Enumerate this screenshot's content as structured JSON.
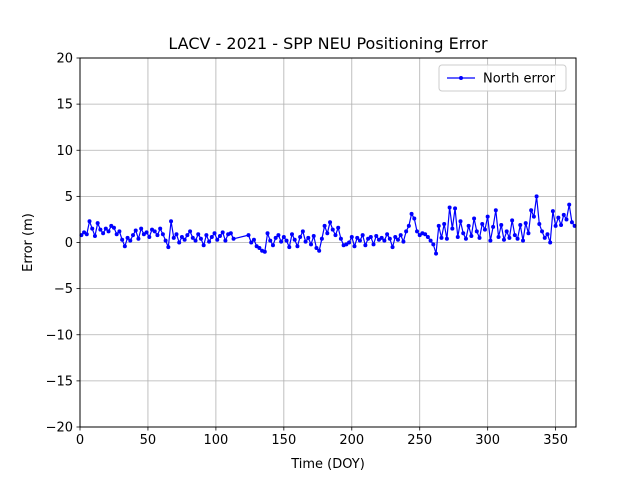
{
  "chart_data": {
    "type": "line",
    "title": "LACV - 2021 - SPP NEU Positioning Error",
    "x_label": "Time (DOY)",
    "y_label": "Error (m)",
    "xlim": [
      0,
      365
    ],
    "ylim": [
      -20,
      20
    ],
    "xticks": [
      0,
      50,
      100,
      150,
      200,
      250,
      300,
      350
    ],
    "yticks": [
      {
        "value": -20,
        "label": "−20"
      },
      {
        "value": -15,
        "label": "−15"
      },
      {
        "value": -10,
        "label": "−10"
      },
      {
        "value": -5,
        "label": "−5"
      },
      0,
      5,
      10,
      15,
      20
    ],
    "grid": true,
    "legend": "upper right",
    "x": [
      1,
      3,
      5,
      7,
      9,
      11,
      13,
      15,
      17,
      19,
      21,
      23,
      25,
      27,
      29,
      31,
      33,
      35,
      37,
      39,
      41,
      43,
      45,
      47,
      49,
      51,
      53,
      55,
      57,
      59,
      61,
      63,
      65,
      67,
      69,
      71,
      73,
      75,
      77,
      79,
      81,
      83,
      85,
      87,
      89,
      91,
      93,
      95,
      97,
      99,
      101,
      103,
      105,
      107,
      109,
      111,
      113,
      124,
      126,
      128,
      130,
      132,
      134,
      136,
      138,
      140,
      142,
      144,
      146,
      148,
      150,
      152,
      154,
      156,
      158,
      160,
      162,
      164,
      166,
      168,
      170,
      172,
      174,
      176,
      178,
      180,
      182,
      184,
      186,
      188,
      190,
      192,
      194,
      196,
      198,
      200,
      202,
      204,
      206,
      208,
      210,
      212,
      214,
      216,
      218,
      220,
      222,
      224,
      226,
      228,
      230,
      232,
      234,
      236,
      238,
      240,
      242,
      244,
      246,
      248,
      250,
      252,
      254,
      256,
      258,
      260,
      262,
      264,
      266,
      268,
      270,
      272,
      274,
      276,
      278,
      280,
      282,
      284,
      286,
      288,
      290,
      292,
      294,
      296,
      298,
      300,
      302,
      304,
      306,
      308,
      310,
      312,
      314,
      316,
      318,
      320,
      322,
      324,
      326,
      328,
      330,
      332,
      334,
      336,
      338,
      340,
      342,
      344,
      346,
      348,
      350,
      352,
      354,
      356,
      358,
      360,
      362,
      364
    ],
    "series": [
      {
        "name": "North error",
        "color": "#0000ff",
        "values": [
          0.8,
          1.1,
          0.9,
          2.3,
          1.5,
          0.7,
          2.1,
          1.4,
          1.0,
          1.5,
          1.2,
          1.8,
          1.6,
          0.9,
          1.2,
          0.3,
          -0.4,
          0.5,
          0.2,
          0.8,
          1.3,
          0.4,
          1.5,
          0.9,
          1.1,
          0.6,
          1.4,
          1.2,
          0.8,
          1.5,
          0.9,
          0.2,
          -0.5,
          2.3,
          0.5,
          0.9,
          0.0,
          0.6,
          0.3,
          0.8,
          1.2,
          0.5,
          0.2,
          0.9,
          0.4,
          -0.3,
          0.8,
          0.1,
          0.6,
          1.0,
          0.3,
          0.7,
          1.1,
          0.2,
          0.9,
          1.0,
          0.4,
          0.8,
          0.0,
          0.3,
          -0.4,
          -0.6,
          -0.9,
          -1.0,
          1.0,
          0.2,
          -0.3,
          0.5,
          0.8,
          0.1,
          0.6,
          0.2,
          -0.5,
          0.9,
          0.3,
          -0.4,
          0.6,
          1.2,
          0.1,
          0.5,
          -0.2,
          0.7,
          -0.6,
          -0.9,
          0.4,
          1.8,
          1.0,
          2.2,
          1.4,
          0.8,
          1.6,
          0.4,
          -0.3,
          -0.2,
          0.0,
          0.6,
          -0.4,
          0.5,
          0.2,
          0.8,
          -0.3,
          0.4,
          0.6,
          -0.2,
          0.7,
          0.3,
          0.5,
          0.2,
          0.9,
          0.4,
          -0.5,
          0.6,
          0.3,
          0.8,
          0.1,
          1.2,
          1.8,
          3.1,
          2.6,
          1.2,
          0.8,
          1.0,
          0.9,
          0.6,
          0.2,
          -0.2,
          -1.2,
          1.8,
          0.5,
          2.0,
          0.4,
          3.8,
          1.5,
          3.7,
          0.6,
          2.3,
          1.0,
          0.4,
          1.8,
          0.7,
          2.6,
          1.2,
          0.5,
          2.0,
          1.4,
          2.8,
          0.2,
          1.7,
          3.5,
          0.6,
          1.9,
          0.3,
          1.2,
          0.5,
          2.4,
          0.8,
          0.4,
          1.9,
          0.2,
          2.1,
          1.0,
          3.5,
          2.8,
          5.0,
          2.0,
          1.2,
          0.5,
          0.9,
          0.0,
          3.4,
          1.8,
          2.7,
          1.9,
          3.0,
          2.5,
          4.1,
          2.2,
          1.8
        ]
      }
    ]
  }
}
